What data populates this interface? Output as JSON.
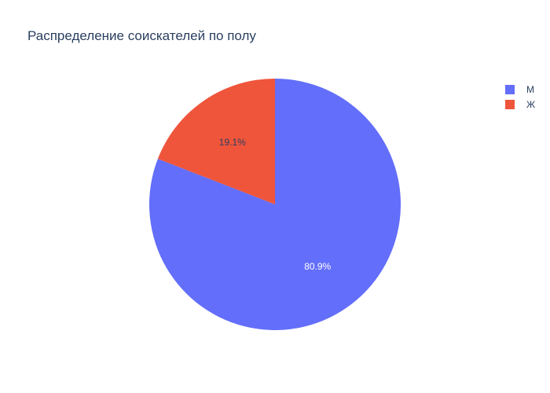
{
  "chart_data": {
    "type": "pie",
    "title": "Распределение соискателей по полу",
    "categories": [
      "М",
      "Ж"
    ],
    "values": [
      80.9,
      19.1
    ],
    "labels": [
      "80.9%",
      "19.1%"
    ],
    "colors": [
      "#636efa",
      "#ef553b"
    ],
    "label_colors": [
      "#ffffff",
      "#2a3f5f"
    ],
    "direction": "counterclockwise",
    "start_angle_deg": 0,
    "legend": {
      "position": "top-right",
      "items": [
        {
          "label": "М",
          "color": "#636efa"
        },
        {
          "label": "Ж",
          "color": "#ef553b"
        }
      ]
    }
  }
}
